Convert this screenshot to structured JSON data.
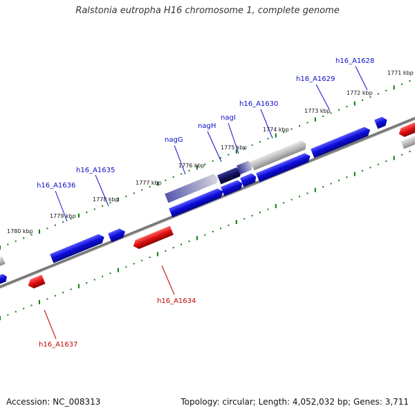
{
  "title": "Ralstonia eutropha H16 chromosome 1, complete genome",
  "footer": {
    "accession": "Accession: NC_008313",
    "summary": "Topology: circular; Length: 4,052,032 bp; Genes: 3,711"
  },
  "colors": {
    "forward": "#0b0bd9",
    "reverse": "#dd0f0f",
    "highlight": "#12125e",
    "rna": "#9a9a9a",
    "backbone": "#787878",
    "tick": "#0a7a0a",
    "forward_label": "#0a0ac8",
    "reverse_label": "#c00000"
  },
  "ticks": [
    {
      "label": "1771 kbp"
    },
    {
      "label": "1772 kbp"
    },
    {
      "label": "1773 kbp"
    },
    {
      "label": "1774 kbp"
    },
    {
      "label": "1775 kbp"
    },
    {
      "label": "1776 kbp"
    },
    {
      "label": "1777 kbp"
    },
    {
      "label": "1778 kbp"
    },
    {
      "label": "1779 kbp"
    },
    {
      "label": "1780 kbp"
    }
  ],
  "genes": [
    {
      "label": "h16_A1628",
      "strand": "forward"
    },
    {
      "label": "h16_A1629",
      "strand": "forward"
    },
    {
      "label": "h16_A1630",
      "strand": "forward"
    },
    {
      "label": "nagI",
      "strand": "forward"
    },
    {
      "label": "nagH",
      "strand": "forward"
    },
    {
      "label": "nagG",
      "strand": "forward"
    },
    {
      "label": "h16_A1635",
      "strand": "forward"
    },
    {
      "label": "h16_A1636",
      "strand": "forward"
    },
    {
      "label": "h16_A1634",
      "strand": "reverse"
    },
    {
      "label": "h16_A1637",
      "strand": "reverse"
    }
  ]
}
